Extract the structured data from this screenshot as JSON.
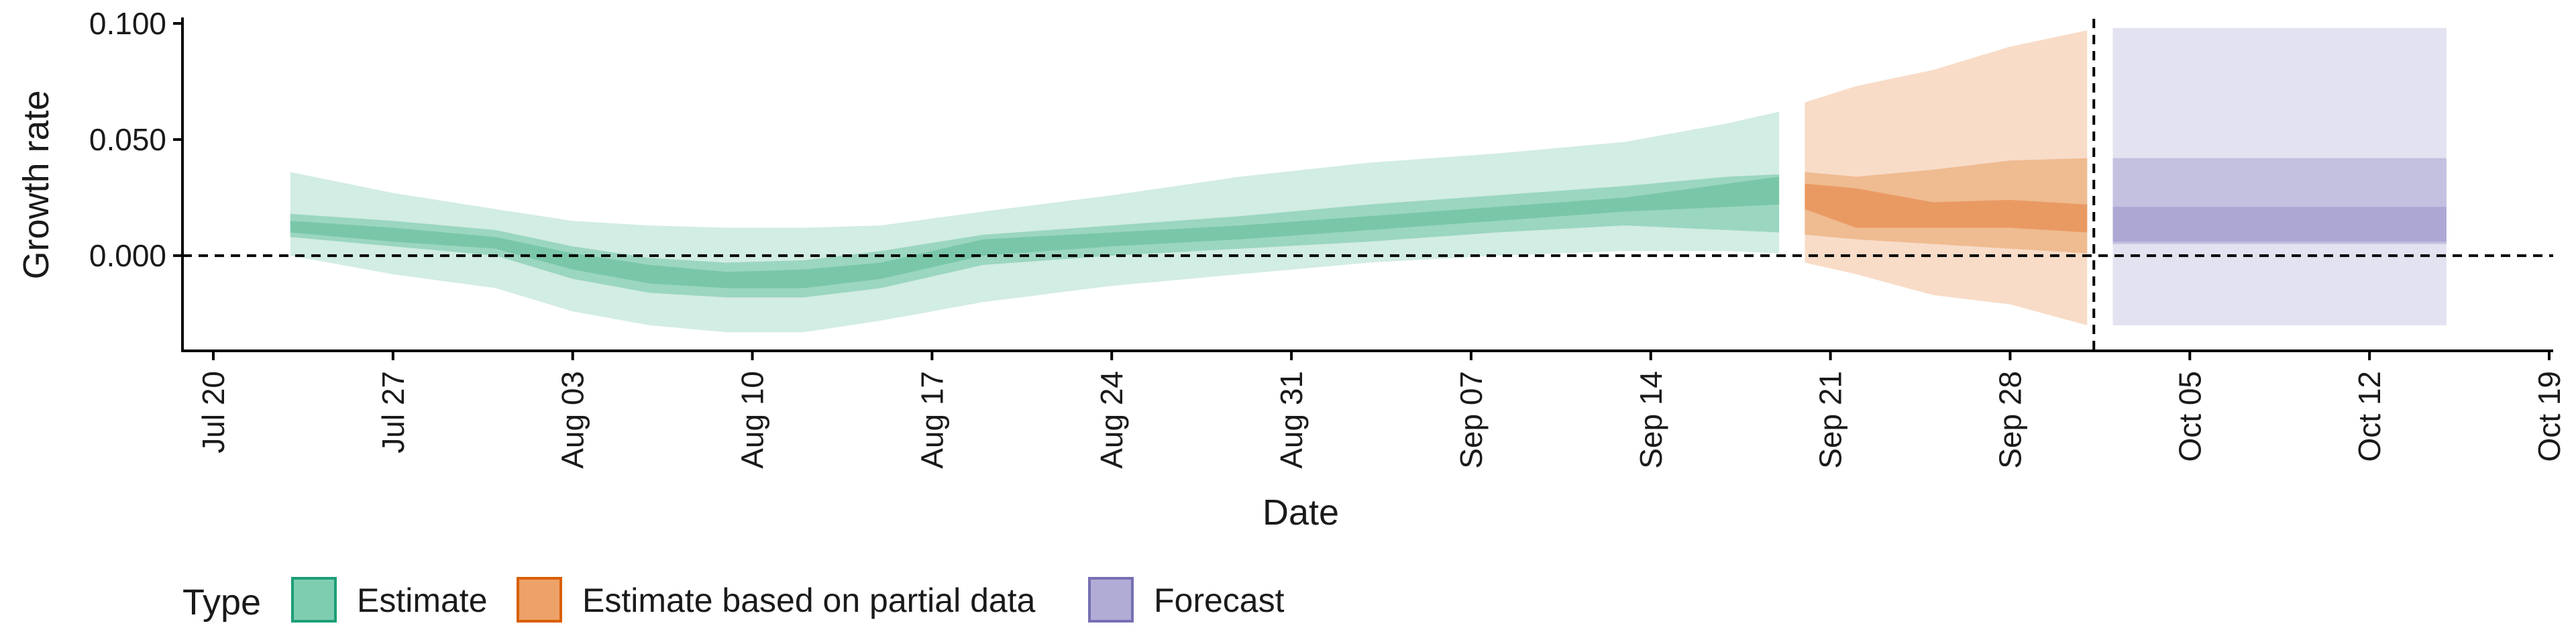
{
  "chart_data": {
    "type": "area",
    "xlabel": "Date",
    "ylabel": "Growth rate",
    "xlim": [
      "2020-07-20",
      "2020-10-19"
    ],
    "ylim": [
      -0.041,
      0.102
    ],
    "x_ticks": [
      {
        "date": "2020-07-20",
        "label": "Jul 20"
      },
      {
        "date": "2020-07-27",
        "label": "Jul 27"
      },
      {
        "date": "2020-08-03",
        "label": "Aug 03"
      },
      {
        "date": "2020-08-10",
        "label": "Aug 10"
      },
      {
        "date": "2020-08-17",
        "label": "Aug 17"
      },
      {
        "date": "2020-08-24",
        "label": "Aug 24"
      },
      {
        "date": "2020-08-31",
        "label": "Aug 31"
      },
      {
        "date": "2020-09-07",
        "label": "Sep 07"
      },
      {
        "date": "2020-09-14",
        "label": "Sep 14"
      },
      {
        "date": "2020-09-21",
        "label": "Sep 21"
      },
      {
        "date": "2020-09-28",
        "label": "Sep 28"
      },
      {
        "date": "2020-10-05",
        "label": "Oct 05"
      },
      {
        "date": "2020-10-12",
        "label": "Oct 12"
      },
      {
        "date": "2020-10-19",
        "label": "Oct 19"
      }
    ],
    "y_ticks": [
      {
        "value": 0.1,
        "label": "0.100"
      },
      {
        "value": 0.05,
        "label": "0.050"
      },
      {
        "value": 0.0,
        "label": "0.000"
      }
    ],
    "reference_lines": [
      {
        "axis": "y",
        "value": 0.0,
        "style": "dashed"
      },
      {
        "axis": "x",
        "value": "2020-10-01",
        "style": "dashed"
      }
    ],
    "grid": false,
    "legend": {
      "title": "Type",
      "position": "bottom",
      "entries": [
        {
          "label": "Estimate",
          "fill": "#7fcdb0",
          "stroke": "#1b9e77"
        },
        {
          "label": "Estimate based on partial data",
          "fill": "#eda26a",
          "stroke": "#d95f02"
        },
        {
          "label": "Forecast",
          "fill": "#b1acd6",
          "stroke": "#7570b3"
        }
      ]
    },
    "series": [
      {
        "type_label": "Estimate",
        "colors": {
          "outer": "#d2ede3",
          "mid": "#9bd6c0",
          "inner": "#79c7a8"
        },
        "points": [
          {
            "date": "2020-07-23",
            "lo90": 0.0,
            "hi90": 0.036,
            "lo50": 0.008,
            "hi50": 0.018,
            "lo20": 0.01,
            "hi20": 0.015
          },
          {
            "date": "2020-07-27",
            "lo90": -0.008,
            "hi90": 0.027,
            "lo50": 0.004,
            "hi50": 0.015,
            "lo20": 0.006,
            "hi20": 0.012
          },
          {
            "date": "2020-07-31",
            "lo90": -0.014,
            "hi90": 0.02,
            "lo50": 0.0,
            "hi50": 0.011,
            "lo20": 0.003,
            "hi20": 0.008
          },
          {
            "date": "2020-08-03",
            "lo90": -0.024,
            "hi90": 0.015,
            "lo50": -0.01,
            "hi50": 0.004,
            "lo20": -0.006,
            "hi20": 0.001
          },
          {
            "date": "2020-08-06",
            "lo90": -0.03,
            "hi90": 0.013,
            "lo50": -0.016,
            "hi50": -0.001,
            "lo20": -0.012,
            "hi20": -0.004
          },
          {
            "date": "2020-08-09",
            "lo90": -0.033,
            "hi90": 0.012,
            "lo50": -0.018,
            "hi50": -0.003,
            "lo20": -0.014,
            "hi20": -0.007
          },
          {
            "date": "2020-08-12",
            "lo90": -0.033,
            "hi90": 0.012,
            "lo50": -0.018,
            "hi50": -0.002,
            "lo20": -0.014,
            "hi20": -0.006
          },
          {
            "date": "2020-08-15",
            "lo90": -0.028,
            "hi90": 0.013,
            "lo50": -0.014,
            "hi50": 0.002,
            "lo20": -0.01,
            "hi20": -0.003
          },
          {
            "date": "2020-08-19",
            "lo90": -0.02,
            "hi90": 0.019,
            "lo50": -0.004,
            "hi50": 0.009,
            "lo20": 0.0,
            "hi20": 0.007
          },
          {
            "date": "2020-08-24",
            "lo90": -0.013,
            "hi90": 0.026,
            "lo50": 0.0,
            "hi50": 0.013,
            "lo20": 0.004,
            "hi20": 0.01
          },
          {
            "date": "2020-08-29",
            "lo90": -0.008,
            "hi90": 0.034,
            "lo50": 0.003,
            "hi50": 0.017,
            "lo20": 0.007,
            "hi20": 0.013
          },
          {
            "date": "2020-09-03",
            "lo90": -0.003,
            "hi90": 0.04,
            "lo50": 0.006,
            "hi50": 0.022,
            "lo20": 0.011,
            "hi20": 0.017
          },
          {
            "date": "2020-09-08",
            "lo90": 0.0,
            "hi90": 0.044,
            "lo50": 0.01,
            "hi50": 0.026,
            "lo20": 0.015,
            "hi20": 0.021
          },
          {
            "date": "2020-09-13",
            "lo90": 0.002,
            "hi90": 0.049,
            "lo50": 0.013,
            "hi50": 0.03,
            "lo20": 0.019,
            "hi20": 0.025
          },
          {
            "date": "2020-09-17",
            "lo90": 0.002,
            "hi90": 0.057,
            "lo50": 0.011,
            "hi50": 0.034,
            "lo20": 0.021,
            "hi20": 0.031
          },
          {
            "date": "2020-09-19",
            "lo90": 0.001,
            "hi90": 0.062,
            "lo50": 0.01,
            "hi50": 0.035,
            "lo20": 0.022,
            "hi20": 0.034
          }
        ]
      },
      {
        "type_label": "Estimate based on partial data",
        "colors": {
          "outer": "#f8dcc8",
          "mid": "#efbb91",
          "inner": "#e99a63"
        },
        "points": [
          {
            "date": "2020-09-20",
            "lo90": -0.003,
            "hi90": 0.066,
            "lo50": 0.009,
            "hi50": 0.036,
            "lo20": 0.02,
            "hi20": 0.031
          },
          {
            "date": "2020-09-22",
            "lo90": -0.008,
            "hi90": 0.073,
            "lo50": 0.007,
            "hi50": 0.034,
            "lo20": 0.012,
            "hi20": 0.029
          },
          {
            "date": "2020-09-25",
            "lo90": -0.017,
            "hi90": 0.08,
            "lo50": 0.005,
            "hi50": 0.037,
            "lo20": 0.012,
            "hi20": 0.023
          },
          {
            "date": "2020-09-28",
            "lo90": -0.021,
            "hi90": 0.09,
            "lo50": 0.003,
            "hi50": 0.041,
            "lo20": 0.012,
            "hi20": 0.024
          },
          {
            "date": "2020-10-01",
            "lo90": -0.03,
            "hi90": 0.097,
            "lo50": 0.001,
            "hi50": 0.042,
            "lo20": 0.01,
            "hi20": 0.022
          }
        ]
      },
      {
        "type_label": "Forecast",
        "colors": {
          "outer": "#e3e2f0",
          "mid": "#c3c0e0",
          "inner": "#aca8d3"
        },
        "points": [
          {
            "date": "2020-10-02",
            "lo90": -0.03,
            "hi90": 0.098,
            "lo50": 0.005,
            "hi50": 0.042,
            "lo20": 0.006,
            "hi20": 0.021
          },
          {
            "date": "2020-10-15",
            "lo90": -0.03,
            "hi90": 0.098,
            "lo50": 0.005,
            "hi50": 0.042,
            "lo20": 0.006,
            "hi20": 0.021
          }
        ]
      }
    ]
  }
}
